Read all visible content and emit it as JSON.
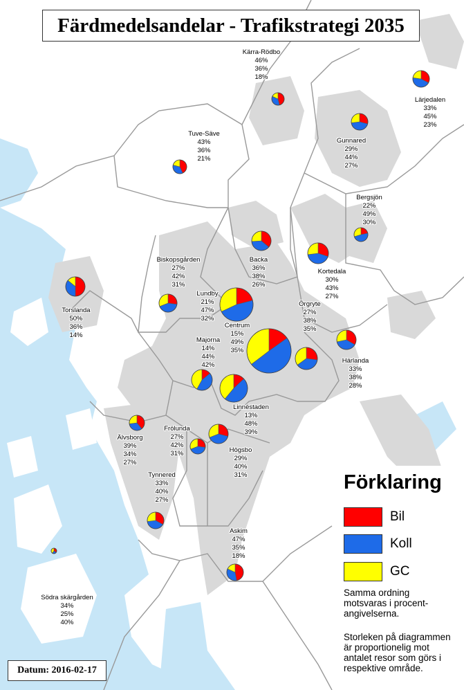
{
  "title": "Färdmedelsandelar - Trafikstrategi 2035",
  "date": "Datum: 2016-02-17",
  "colors": {
    "bil": "#ff0000",
    "koll": "#1e6be8",
    "gc": "#ffff00",
    "land": "#ffffff",
    "urban": "#d9d9d9",
    "water": "#c7e6f7",
    "border": "#999999"
  },
  "legend": {
    "title": "Förklaring",
    "items": [
      {
        "label": "Bil",
        "color": "#ff0000"
      },
      {
        "label": "Koll",
        "color": "#1e6be8"
      },
      {
        "label": "GC",
        "color": "#ffff00"
      }
    ],
    "note1": "Samma ordning motsvaras i procent-angivelserna.",
    "note2": "Storleken på diagrammen är proportionelig mot antalet resor som görs i respektive område."
  },
  "areas": [
    {
      "name": "Kärra-Rödbo",
      "bil": "46%",
      "koll": "36%",
      "gc": "18%",
      "share": [
        46,
        36,
        18
      ]
    },
    {
      "name": "Lärjedalen",
      "bil": "33%",
      "koll": "45%",
      "gc": "23%",
      "share": [
        33,
        45,
        23
      ]
    },
    {
      "name": "Tuve-Säve",
      "bil": "43%",
      "koll": "36%",
      "gc": "21%",
      "share": [
        43,
        36,
        21
      ]
    },
    {
      "name": "Gunnared",
      "bil": "29%",
      "koll": "44%",
      "gc": "27%",
      "share": [
        29,
        44,
        27
      ]
    },
    {
      "name": "Bergsjön",
      "bil": "22%",
      "koll": "49%",
      "gc": "30%",
      "share": [
        22,
        49,
        30
      ]
    },
    {
      "name": "Backa",
      "bil": "36%",
      "koll": "38%",
      "gc": "26%",
      "share": [
        36,
        38,
        26
      ]
    },
    {
      "name": "Biskopsgården",
      "bil": "27%",
      "koll": "42%",
      "gc": "31%",
      "share": [
        27,
        42,
        31
      ]
    },
    {
      "name": "Kortedala",
      "bil": "30%",
      "koll": "43%",
      "gc": "27%",
      "share": [
        30,
        43,
        27
      ]
    },
    {
      "name": "Torslanda",
      "bil": "50%",
      "koll": "36%",
      "gc": "14%",
      "share": [
        50,
        36,
        14
      ]
    },
    {
      "name": "Lundby",
      "bil": "21%",
      "koll": "47%",
      "gc": "32%",
      "share": [
        21,
        47,
        32
      ]
    },
    {
      "name": "Centrum",
      "bil": "15%",
      "koll": "49%",
      "gc": "35%",
      "share": [
        15,
        49,
        35
      ]
    },
    {
      "name": "Örgryte",
      "bil": "27%",
      "koll": "38%",
      "gc": "35%",
      "share": [
        27,
        38,
        35
      ]
    },
    {
      "name": "Majorna",
      "bil": "14%",
      "koll": "44%",
      "gc": "42%",
      "share": [
        14,
        44,
        42
      ]
    },
    {
      "name": "Härlanda",
      "bil": "33%",
      "koll": "38%",
      "gc": "28%",
      "share": [
        33,
        38,
        28
      ]
    },
    {
      "name": "Linnéstaden",
      "bil": "13%",
      "koll": "48%",
      "gc": "39%",
      "share": [
        13,
        48,
        39
      ]
    },
    {
      "name": "Älvsborg",
      "bil": "39%",
      "koll": "34%",
      "gc": "27%",
      "share": [
        39,
        34,
        27
      ]
    },
    {
      "name": "Frölunda",
      "bil": "27%",
      "koll": "42%",
      "gc": "31%",
      "share": [
        27,
        42,
        31
      ]
    },
    {
      "name": "Högsbo",
      "bil": "29%",
      "koll": "40%",
      "gc": "31%",
      "share": [
        29,
        40,
        31
      ]
    },
    {
      "name": "Tynnered",
      "bil": "33%",
      "koll": "40%",
      "gc": "27%",
      "share": [
        33,
        40,
        27
      ]
    },
    {
      "name": "Askim",
      "bil": "47%",
      "koll": "35%",
      "gc": "18%",
      "share": [
        47,
        35,
        18
      ]
    },
    {
      "name": "Södra skärgården",
      "bil": "34%",
      "koll": "25%",
      "gc": "40%",
      "share": [
        34,
        25,
        40
      ]
    }
  ]
}
